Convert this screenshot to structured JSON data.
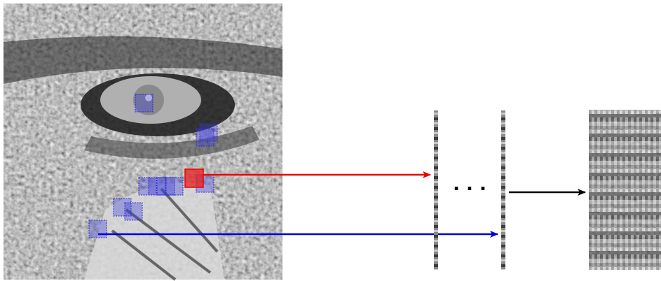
{
  "ellipsis": ". . ."
}
